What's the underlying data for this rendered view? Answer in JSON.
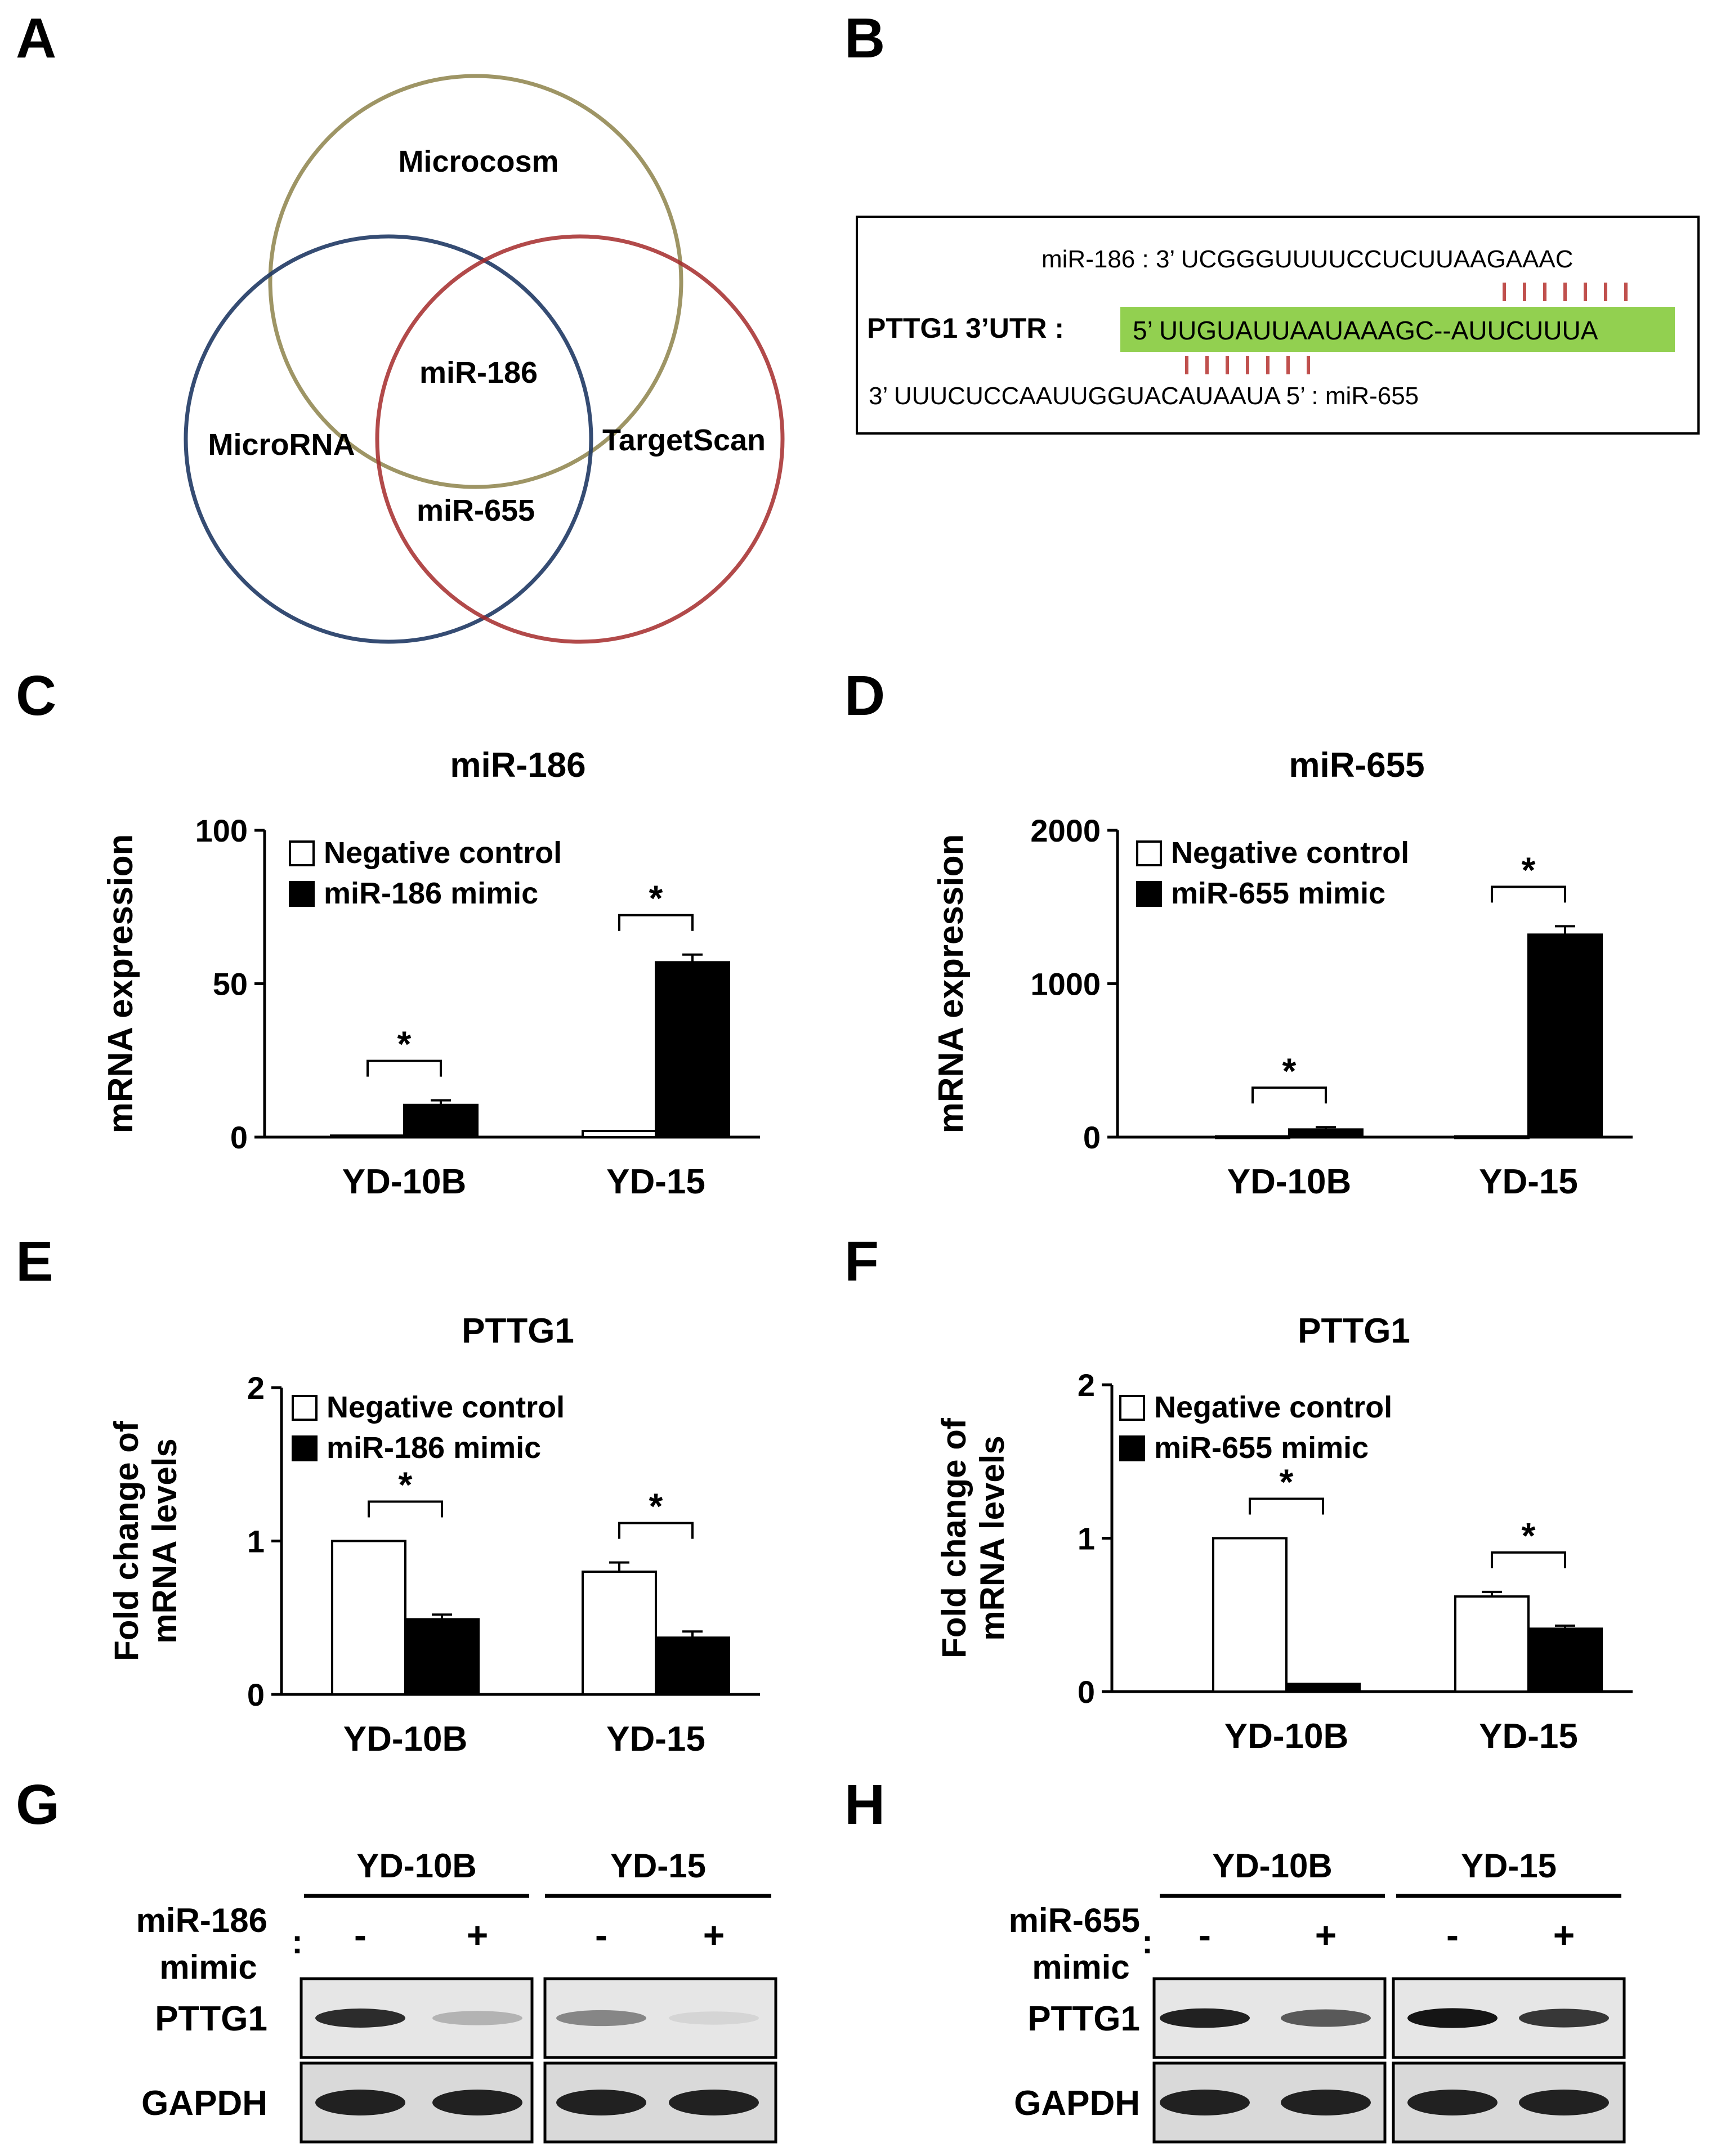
{
  "panels": {
    "A": "A",
    "B": "B",
    "C": "C",
    "D": "D",
    "E": "E",
    "F": "F",
    "G": "G",
    "H": "H"
  },
  "venn": {
    "circles": [
      {
        "label": "Microcosm",
        "color": "#948a54"
      },
      {
        "label": "MicroRNA",
        "color": "#1f3864"
      },
      {
        "label": "TargetScan",
        "color": "#a52a2a"
      }
    ],
    "overlap_labels": [
      "miR-186",
      "miR-655"
    ]
  },
  "alignment": {
    "mir186_line": "miR-186 : 3’ UCGGGUUUUCCUCUUAAGAAAC",
    "utr_label": "PTTG1 3’UTR :",
    "utr_sequence": "5’ UUGUAUUAAUAAAGC--AUUCUUUA",
    "mir655_line": "3’ UUUCUCCAAUUGGUACAUAAUA 5’ : miR-655",
    "highlight_color": "#92d050",
    "pairing_color": "#c0504d"
  },
  "chart_data": [
    {
      "panel": "C",
      "type": "bar",
      "title": "miR-186",
      "ylabel": "mRNA expression",
      "ylim": [
        0,
        100
      ],
      "yticks": [
        "0",
        "50",
        "100"
      ],
      "categories": [
        "YD-10B",
        "YD-15"
      ],
      "series": [
        {
          "name": "Negative control",
          "values": [
            0.5,
            2
          ],
          "errors": [
            0,
            0
          ],
          "fill": "#ffffff"
        },
        {
          "name": "miR-186 mimic",
          "values": [
            10.5,
            57
          ],
          "errors": [
            1.5,
            2.5
          ],
          "fill": "#000000"
        }
      ],
      "significance": [
        "*",
        "*"
      ]
    },
    {
      "panel": "D",
      "type": "bar",
      "title": "miR-655",
      "ylabel": "mRNA expression",
      "ylim": [
        0,
        2000
      ],
      "yticks": [
        "0",
        "1000",
        "2000"
      ],
      "categories": [
        "YD-10B",
        "YD-15"
      ],
      "series": [
        {
          "name": "Negative control",
          "values": [
            5,
            5
          ],
          "errors": [
            0,
            0
          ],
          "fill": "#ffffff"
        },
        {
          "name": "miR-655 mimic",
          "values": [
            50,
            1320
          ],
          "errors": [
            15,
            55
          ],
          "fill": "#000000"
        }
      ],
      "significance": [
        "*",
        "*"
      ]
    },
    {
      "panel": "E",
      "type": "bar",
      "title": "PTTG1",
      "ylabel": "Fold change of mRNA levels",
      "ylabel_lines": [
        "Fold change of",
        "mRNA levels"
      ],
      "ylim": [
        0,
        2
      ],
      "yticks": [
        "0",
        "1",
        "2"
      ],
      "categories": [
        "YD-10B",
        "YD-15"
      ],
      "series": [
        {
          "name": "Negative control",
          "values": [
            1.0,
            0.8
          ],
          "errors": [
            0,
            0.06
          ],
          "fill": "#ffffff"
        },
        {
          "name": "miR-186 mimic",
          "values": [
            0.49,
            0.37
          ],
          "errors": [
            0.03,
            0.04
          ],
          "fill": "#000000"
        }
      ],
      "significance": [
        "*",
        "*"
      ]
    },
    {
      "panel": "F",
      "type": "bar",
      "title": "PTTG1",
      "ylabel": "Fold change of mRNA levels",
      "ylabel_lines": [
        "Fold change of",
        "mRNA levels"
      ],
      "ylim": [
        0,
        2
      ],
      "yticks": [
        "0",
        "1",
        "2"
      ],
      "categories": [
        "YD-10B",
        "YD-15"
      ],
      "series": [
        {
          "name": "Negative control",
          "values": [
            1.0,
            0.62
          ],
          "errors": [
            0,
            0.03
          ],
          "fill": "#ffffff"
        },
        {
          "name": "miR-655 mimic",
          "values": [
            0.05,
            0.41
          ],
          "errors": [
            0,
            0.02
          ],
          "fill": "#000000"
        }
      ],
      "significance": [
        "*",
        "*"
      ]
    }
  ],
  "blots": [
    {
      "panel": "G",
      "groups": [
        "YD-10B",
        "YD-15"
      ],
      "treatment_line1": "miR-186",
      "treatment_line2": "mimic",
      "colon": ":",
      "lanes": [
        "-",
        "+",
        "-",
        "+"
      ],
      "rows": [
        {
          "label": "PTTG1",
          "intensity": [
            0.85,
            0.25,
            0.45,
            0.1
          ]
        },
        {
          "label": "GAPDH",
          "intensity": [
            0.9,
            0.9,
            0.9,
            0.9
          ]
        }
      ]
    },
    {
      "panel": "H",
      "groups": [
        "YD-10B",
        "YD-15"
      ],
      "treatment_line1": "miR-655",
      "treatment_line2": "mimic",
      "colon": ":",
      "lanes": [
        "-",
        "+",
        "-",
        "+"
      ],
      "rows": [
        {
          "label": "PTTG1",
          "intensity": [
            0.9,
            0.65,
            0.95,
            0.8
          ]
        },
        {
          "label": "GAPDH",
          "intensity": [
            0.9,
            0.9,
            0.9,
            0.9
          ]
        }
      ]
    }
  ]
}
